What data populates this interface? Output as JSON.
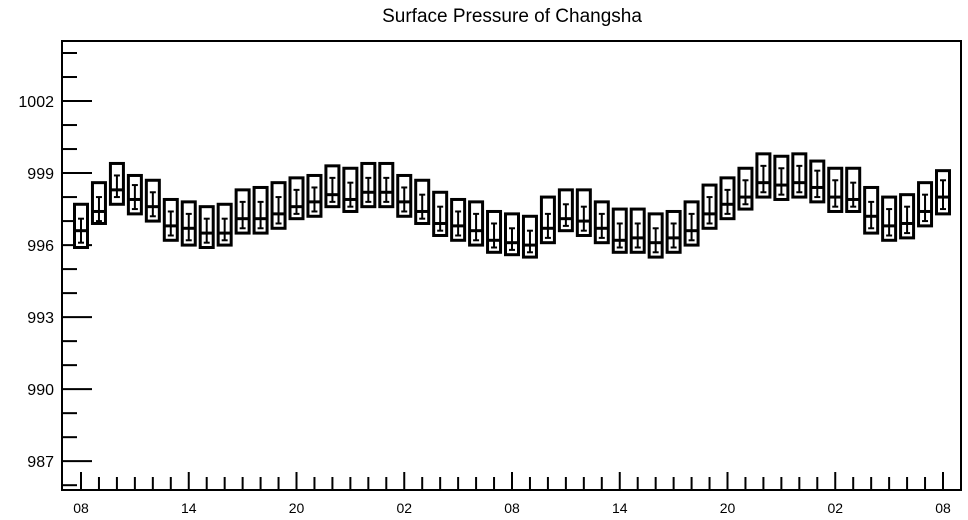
{
  "chart_data": {
    "type": "boxplot",
    "title": "Surface Pressure of Changsha",
    "xlabel": "",
    "ylabel": "",
    "ylim": [
      985.8,
      1004.5
    ],
    "y_ticks": [
      "1002",
      "999",
      "996",
      "993",
      "990",
      "987"
    ],
    "x_tick_labels": [
      "08",
      "14",
      "20",
      "02",
      "08",
      "14",
      "20",
      "02",
      "08"
    ],
    "time_step_hours": 1,
    "grid": false,
    "legend": "none",
    "series": [
      {
        "box_low": [
          995.9,
          996.9,
          997.7,
          997.3,
          997.0,
          996.2,
          996.0,
          995.9,
          996.0,
          996.5,
          996.5,
          996.7,
          997.1,
          997.2,
          997.6,
          997.4,
          997.6,
          997.6,
          997.2,
          996.9,
          996.4,
          996.2,
          996.0,
          995.7,
          995.6,
          995.5,
          996.1,
          996.6,
          996.4,
          996.1,
          995.7,
          995.7,
          995.5,
          995.7,
          996.0,
          996.7,
          997.1,
          997.5,
          998.0,
          997.9,
          998.0,
          997.8,
          997.4,
          997.4,
          996.5,
          996.2,
          996.3,
          996.8,
          997.3
        ],
        "median": [
          996.6,
          997.4,
          998.3,
          997.9,
          997.6,
          996.8,
          996.7,
          996.5,
          996.5,
          997.1,
          997.1,
          997.3,
          997.6,
          997.8,
          998.1,
          997.9,
          998.2,
          998.2,
          997.8,
          997.4,
          996.9,
          996.8,
          996.6,
          996.2,
          996.1,
          996.0,
          996.7,
          997.1,
          997.0,
          996.7,
          996.2,
          996.3,
          996.1,
          996.3,
          996.6,
          997.3,
          997.7,
          998.0,
          998.6,
          998.5,
          998.6,
          998.4,
          998.0,
          997.9,
          997.2,
          996.8,
          996.9,
          997.4,
          998.0
        ],
        "box_high": [
          997.7,
          998.6,
          999.4,
          998.9,
          998.7,
          997.9,
          997.8,
          997.6,
          997.7,
          998.3,
          998.4,
          998.6,
          998.8,
          998.9,
          999.3,
          999.2,
          999.4,
          999.4,
          998.9,
          998.7,
          998.2,
          997.9,
          997.8,
          997.4,
          997.3,
          997.2,
          998.0,
          998.3,
          998.3,
          997.8,
          997.5,
          997.5,
          997.3,
          997.4,
          997.8,
          998.5,
          998.8,
          999.2,
          999.8,
          999.7,
          999.8,
          999.5,
          999.2,
          999.2,
          998.4,
          998.0,
          998.1,
          998.6,
          999.1
        ],
        "whisker_low": [
          996.1,
          997.0,
          998.0,
          997.5,
          997.2,
          996.4,
          996.2,
          996.1,
          996.2,
          996.7,
          996.7,
          996.9,
          997.3,
          997.4,
          997.8,
          997.6,
          997.8,
          997.8,
          997.4,
          997.1,
          996.6,
          996.4,
          996.2,
          995.9,
          995.8,
          995.7,
          996.3,
          996.8,
          996.6,
          996.3,
          995.9,
          995.9,
          995.7,
          995.9,
          996.2,
          996.9,
          997.3,
          997.7,
          998.2,
          998.1,
          998.2,
          998.0,
          997.6,
          997.6,
          996.7,
          996.4,
          996.5,
          997.0,
          997.5
        ],
        "whisker_high": [
          997.1,
          998.0,
          998.9,
          998.5,
          998.2,
          997.4,
          997.3,
          997.1,
          997.1,
          997.8,
          997.8,
          998.0,
          998.3,
          998.4,
          998.8,
          998.6,
          998.8,
          998.8,
          998.4,
          998.1,
          997.6,
          997.4,
          997.3,
          996.9,
          996.7,
          996.6,
          997.3,
          997.7,
          997.6,
          997.3,
          996.9,
          996.9,
          996.7,
          996.9,
          997.3,
          998.0,
          998.3,
          998.7,
          999.3,
          999.2,
          999.3,
          999.1,
          998.7,
          998.6,
          997.8,
          997.5,
          997.6,
          998.1,
          998.7
        ]
      }
    ]
  }
}
